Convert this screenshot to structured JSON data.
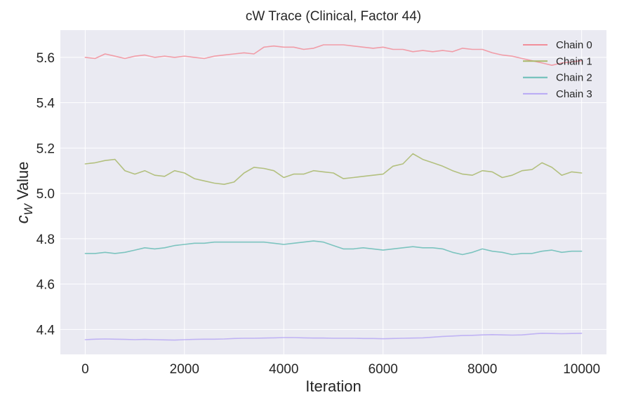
{
  "chart_data": {
    "type": "line",
    "title": "cW Trace (Clinical, Factor 44)",
    "xlabel": "Iteration",
    "ylabel_main": "c",
    "ylabel_sub": "W",
    "ylabel_suffix": " Value",
    "xlim": [
      -500,
      10500
    ],
    "ylim": [
      4.29,
      5.72
    ],
    "xticks": [
      0,
      2000,
      4000,
      6000,
      8000,
      10000
    ],
    "xtick_labels": [
      "0",
      "2000",
      "4000",
      "6000",
      "8000",
      "10000"
    ],
    "yticks": [
      4.4,
      4.6,
      4.8,
      5.0,
      5.2,
      5.4,
      5.6
    ],
    "ytick_labels": [
      "4.4",
      "4.6",
      "4.8",
      "5.0",
      "5.2",
      "5.4",
      "5.6"
    ],
    "grid": true,
    "legend_position": "top-right",
    "series": [
      {
        "name": "Chain 0",
        "color": "#f28e9a",
        "x": [
          0,
          200,
          400,
          600,
          800,
          1000,
          1200,
          1400,
          1600,
          1800,
          2000,
          2200,
          2400,
          2600,
          2800,
          3000,
          3200,
          3400,
          3600,
          3800,
          4000,
          4200,
          4400,
          4600,
          4800,
          5000,
          5200,
          5400,
          5600,
          5800,
          6000,
          6200,
          6400,
          6600,
          6800,
          7000,
          7200,
          7400,
          7600,
          7800,
          8000,
          8200,
          8400,
          8600,
          8800,
          9000,
          9200,
          9400,
          9600,
          9800,
          10000
        ],
        "values": [
          5.6,
          5.595,
          5.615,
          5.605,
          5.595,
          5.605,
          5.61,
          5.6,
          5.605,
          5.6,
          5.605,
          5.6,
          5.595,
          5.605,
          5.61,
          5.615,
          5.62,
          5.615,
          5.645,
          5.65,
          5.645,
          5.645,
          5.635,
          5.64,
          5.655,
          5.655,
          5.655,
          5.65,
          5.645,
          5.64,
          5.645,
          5.635,
          5.635,
          5.625,
          5.63,
          5.625,
          5.63,
          5.625,
          5.64,
          5.635,
          5.635,
          5.62,
          5.61,
          5.605,
          5.595,
          5.585,
          5.575,
          5.565,
          5.575,
          5.58,
          5.585
        ]
      },
      {
        "name": "Chain 1",
        "color": "#a9b86b",
        "x": [
          0,
          200,
          400,
          600,
          800,
          1000,
          1200,
          1400,
          1600,
          1800,
          2000,
          2200,
          2400,
          2600,
          2800,
          3000,
          3200,
          3400,
          3600,
          3800,
          4000,
          4200,
          4400,
          4600,
          4800,
          5000,
          5200,
          5400,
          5600,
          5800,
          6000,
          6200,
          6400,
          6600,
          6800,
          7000,
          7200,
          7400,
          7600,
          7800,
          8000,
          8200,
          8400,
          8600,
          8800,
          9000,
          9200,
          9400,
          9600,
          9800,
          10000
        ],
        "values": [
          5.13,
          5.135,
          5.145,
          5.15,
          5.1,
          5.085,
          5.1,
          5.08,
          5.075,
          5.1,
          5.09,
          5.065,
          5.055,
          5.045,
          5.04,
          5.05,
          5.09,
          5.115,
          5.11,
          5.1,
          5.07,
          5.085,
          5.085,
          5.1,
          5.095,
          5.09,
          5.065,
          5.07,
          5.075,
          5.08,
          5.085,
          5.12,
          5.13,
          5.175,
          5.15,
          5.135,
          5.12,
          5.1,
          5.085,
          5.08,
          5.1,
          5.095,
          5.07,
          5.08,
          5.1,
          5.105,
          5.135,
          5.115,
          5.08,
          5.095,
          5.09
        ]
      },
      {
        "name": "Chain 2",
        "color": "#68bdb6",
        "x": [
          0,
          200,
          400,
          600,
          800,
          1000,
          1200,
          1400,
          1600,
          1800,
          2000,
          2200,
          2400,
          2600,
          2800,
          3000,
          3200,
          3400,
          3600,
          3800,
          4000,
          4200,
          4400,
          4600,
          4800,
          5000,
          5200,
          5400,
          5600,
          5800,
          6000,
          6200,
          6400,
          6600,
          6800,
          7000,
          7200,
          7400,
          7600,
          7800,
          8000,
          8200,
          8400,
          8600,
          8800,
          9000,
          9200,
          9400,
          9600,
          9800,
          10000
        ],
        "values": [
          4.735,
          4.735,
          4.74,
          4.735,
          4.74,
          4.75,
          4.76,
          4.755,
          4.76,
          4.77,
          4.775,
          4.78,
          4.78,
          4.785,
          4.785,
          4.785,
          4.785,
          4.785,
          4.785,
          4.78,
          4.775,
          4.78,
          4.785,
          4.79,
          4.785,
          4.77,
          4.755,
          4.755,
          4.76,
          4.755,
          4.75,
          4.755,
          4.76,
          4.765,
          4.76,
          4.76,
          4.755,
          4.74,
          4.73,
          4.74,
          4.755,
          4.745,
          4.74,
          4.73,
          4.735,
          4.735,
          4.745,
          4.75,
          4.74,
          4.745,
          4.745
        ]
      },
      {
        "name": "Chain 3",
        "color": "#b8a9f5",
        "x": [
          0,
          200,
          400,
          600,
          800,
          1000,
          1200,
          1400,
          1600,
          1800,
          2000,
          2200,
          2400,
          2600,
          2800,
          3000,
          3200,
          3400,
          3600,
          3800,
          4000,
          4200,
          4400,
          4600,
          4800,
          5000,
          5200,
          5400,
          5600,
          5800,
          6000,
          6200,
          6400,
          6600,
          6800,
          7000,
          7200,
          7400,
          7600,
          7800,
          8000,
          8200,
          8400,
          8600,
          8800,
          9000,
          9200,
          9400,
          9600,
          9800,
          10000
        ],
        "values": [
          4.355,
          4.357,
          4.358,
          4.357,
          4.356,
          4.355,
          4.356,
          4.355,
          4.354,
          4.353,
          4.355,
          4.356,
          4.357,
          4.357,
          4.358,
          4.36,
          4.361,
          4.361,
          4.362,
          4.363,
          4.364,
          4.364,
          4.363,
          4.362,
          4.362,
          4.361,
          4.361,
          4.361,
          4.36,
          4.36,
          4.359,
          4.36,
          4.361,
          4.362,
          4.363,
          4.366,
          4.369,
          4.371,
          4.373,
          4.374,
          4.376,
          4.377,
          4.376,
          4.375,
          4.376,
          4.38,
          4.383,
          4.382,
          4.381,
          4.382,
          4.383
        ]
      }
    ]
  }
}
